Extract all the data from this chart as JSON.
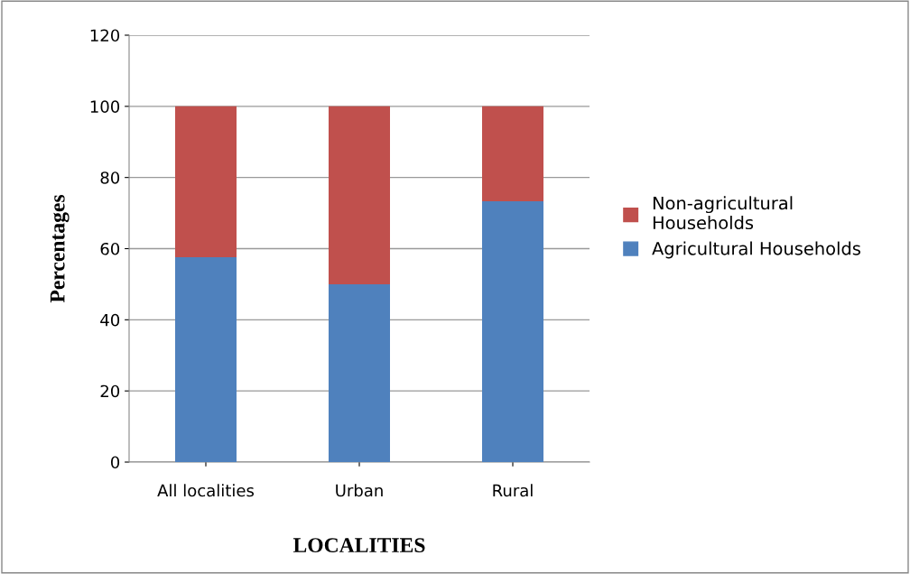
{
  "chart_data": {
    "type": "bar",
    "stacked": true,
    "xlabel": "LOCALITIES",
    "ylabel": "Percentages",
    "categories": [
      "All localities",
      "Urban",
      "Rural"
    ],
    "series": [
      {
        "name": "Agricultural Households",
        "color": "#4f81bd",
        "values": [
          57.6,
          50,
          73.3
        ]
      },
      {
        "name": "Non-agricultural\nHouseholds",
        "color": "#c0504d",
        "values": [
          42.4,
          50,
          26.7
        ]
      }
    ],
    "ylim": [
      0,
      120
    ],
    "yticks": [
      0,
      20,
      40,
      60,
      80,
      100,
      120
    ],
    "grid": "y",
    "legend": "right"
  }
}
